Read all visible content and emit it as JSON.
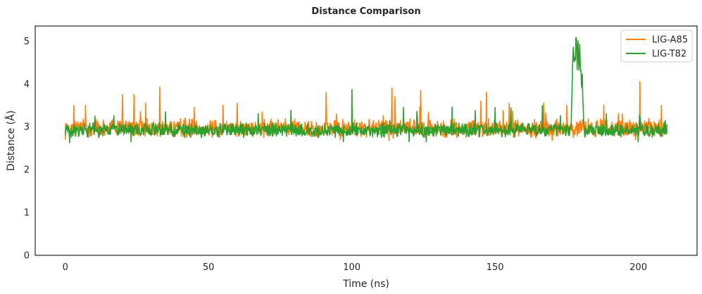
{
  "chart_data": {
    "type": "line",
    "title": "Distance Comparison",
    "xlabel": "Time (ns)",
    "ylabel": "Distance (Å)",
    "xlim": [
      -10.5,
      220.5
    ],
    "ylim": [
      0,
      5.35
    ],
    "xticks": [
      0,
      50,
      100,
      150,
      200
    ],
    "yticks": [
      0,
      1,
      2,
      3,
      4,
      5
    ],
    "grid": false,
    "legend_position": "top-right",
    "series": [
      {
        "name": "LIG-A85",
        "color": "#ff7f0e",
        "x_range": [
          0,
          210
        ],
        "baseline": 2.97,
        "noise": 0.17,
        "peaks": [
          [
            3.0,
            3.5
          ],
          [
            7.0,
            3.5
          ],
          [
            20.0,
            3.75
          ],
          [
            24.0,
            3.75
          ],
          [
            28.0,
            3.55
          ],
          [
            33.0,
            3.93
          ],
          [
            45.0,
            3.45
          ],
          [
            55.0,
            3.5
          ],
          [
            60.0,
            3.55
          ],
          [
            91.0,
            3.8
          ],
          [
            115.0,
            3.7
          ],
          [
            114.0,
            3.9
          ],
          [
            124.0,
            3.85
          ],
          [
            145.0,
            3.6
          ],
          [
            147.0,
            3.8
          ],
          [
            155.0,
            3.55
          ],
          [
            167.0,
            3.55
          ],
          [
            175.0,
            3.5
          ],
          [
            200.5,
            4.05
          ],
          [
            188.0,
            3.5
          ],
          [
            208.0,
            3.5
          ]
        ],
        "dips": [
          [
            0.0,
            2.7
          ],
          [
            96.0,
            2.7
          ],
          [
            113.0,
            2.68
          ],
          [
            140.0,
            2.75
          ],
          [
            170.0,
            2.68
          ],
          [
            199.0,
            2.7
          ]
        ]
      },
      {
        "name": "LIG-T82",
        "color": "#2ca02c",
        "x_range": [
          0,
          210
        ],
        "baseline": 2.92,
        "noise": 0.13,
        "peaks": [
          [
            35.0,
            3.35
          ],
          [
            100.0,
            3.87
          ],
          [
            118.0,
            3.45
          ],
          [
            150.0,
            3.45
          ],
          [
            209.0,
            3.1
          ]
        ],
        "dips": [
          [
            1.5,
            2.63
          ],
          [
            23.0,
            2.65
          ],
          [
            97.0,
            2.65
          ],
          [
            120.0,
            2.65
          ],
          [
            126.0,
            2.65
          ],
          [
            200.0,
            2.65
          ]
        ],
        "spike": {
          "x_start": 176.5,
          "x_end": 181.0,
          "values": [
            3.0,
            3.6,
            4.2,
            4.6,
            4.9,
            4.3,
            4.7,
            4.5,
            5.2,
            4.8,
            4.4,
            4.9,
            4.6,
            4.2,
            4.9,
            4.5,
            4.3,
            3.8,
            4.2,
            3.6,
            3.1,
            2.95
          ]
        }
      }
    ]
  }
}
